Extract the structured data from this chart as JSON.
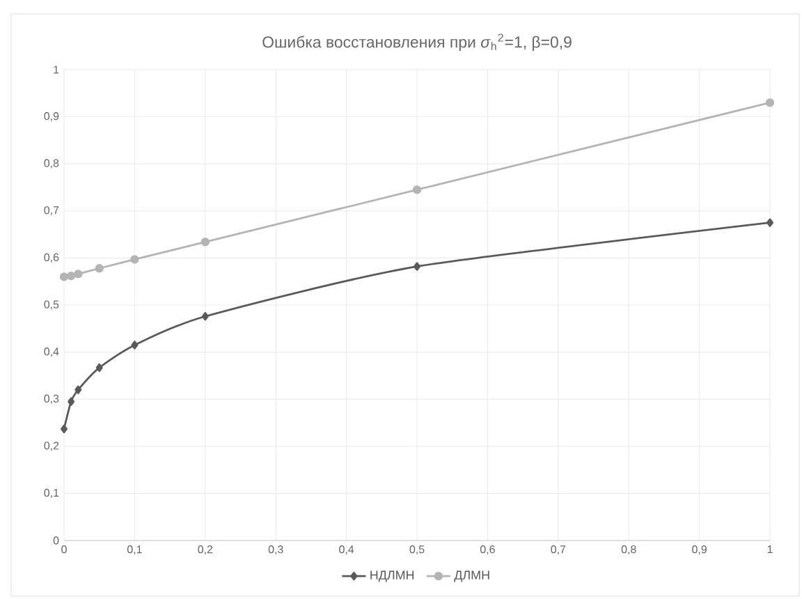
{
  "chart_data": {
    "type": "line",
    "title": "Ошибка восстановления при *σ*$_{h}$$^{2}$=1, β=0,9",
    "x": [
      0,
      0.01,
      0.02,
      0.05,
      0.1,
      0.2,
      0.5,
      1
    ],
    "series": [
      {
        "name": "НДЛМН",
        "color": "#5a5a5a",
        "marker": "diamond",
        "values": [
          0.237,
          0.295,
          0.32,
          0.367,
          0.415,
          0.476,
          0.582,
          0.675
        ]
      },
      {
        "name": "ДЛМН",
        "color": "#b4b4b4",
        "marker": "circle",
        "values": [
          0.56,
          0.562,
          0.566,
          0.578,
          0.597,
          0.634,
          0.745,
          0.93
        ]
      }
    ],
    "xlim": [
      0,
      1
    ],
    "ylim": [
      0,
      1
    ],
    "xticks": [
      0,
      {
        "value": 0.1,
        "label": "0,1"
      },
      {
        "value": 0.2,
        "label": "0,2"
      },
      {
        "value": 0.3,
        "label": "0,3"
      },
      {
        "value": 0.4,
        "label": "0,4"
      },
      {
        "value": 0.5,
        "label": "0,5"
      },
      {
        "value": 0.6,
        "label": "0,6"
      },
      {
        "value": 0.7,
        "label": "0,7"
      },
      {
        "value": 0.8,
        "label": "0,8"
      },
      {
        "value": 0.9,
        "label": "0,9"
      },
      1
    ],
    "yticks": [
      0,
      {
        "value": 0.1,
        "label": "0,1"
      },
      {
        "value": 0.2,
        "label": "0,2"
      },
      {
        "value": 0.3,
        "label": "0,3"
      },
      {
        "value": 0.4,
        "label": "0,4"
      },
      {
        "value": 0.5,
        "label": "0,5"
      },
      {
        "value": 0.6,
        "label": "0,6"
      },
      {
        "value": 0.7,
        "label": "0,7"
      },
      {
        "value": 0.8,
        "label": "0,8"
      },
      {
        "value": 0.9,
        "label": "0,9"
      },
      1
    ],
    "grid": true,
    "legend": "bottom",
    "line_style": "solid"
  }
}
